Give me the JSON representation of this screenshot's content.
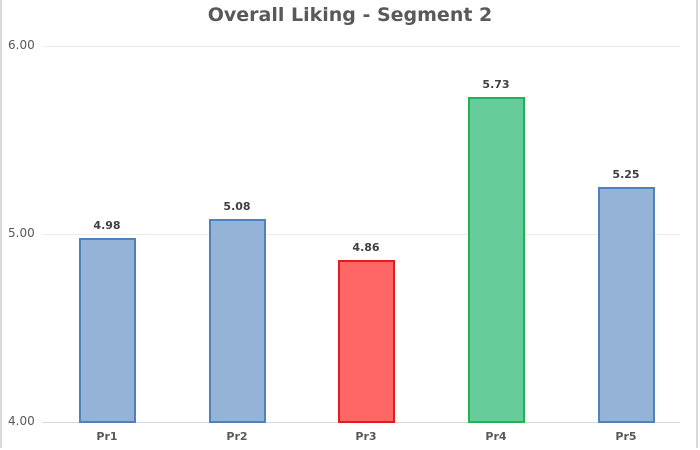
{
  "chart_data": {
    "type": "bar",
    "title": "Overall Liking - Segment 2",
    "xlabel": "",
    "ylabel": "",
    "ylim": [
      4.0,
      6.0
    ],
    "yticks": [
      "4.00",
      "5.00",
      "6.00"
    ],
    "grid": true,
    "legend": null,
    "categories": [
      "Pr1",
      "Pr2",
      "Pr3",
      "Pr4",
      "Pr5"
    ],
    "values": [
      4.98,
      5.08,
      4.86,
      5.73,
      5.25
    ],
    "value_labels": [
      "4.98",
      "5.08",
      "4.86",
      "5.73",
      "5.25"
    ],
    "bar_colors": [
      "#95b3d7",
      "#95b3d7",
      "#ff6666",
      "#66cc99",
      "#95b3d7"
    ],
    "bar_border_colors": [
      "#4f81bd",
      "#4f81bd",
      "#e8191f",
      "#22b153",
      "#4f81bd"
    ]
  }
}
